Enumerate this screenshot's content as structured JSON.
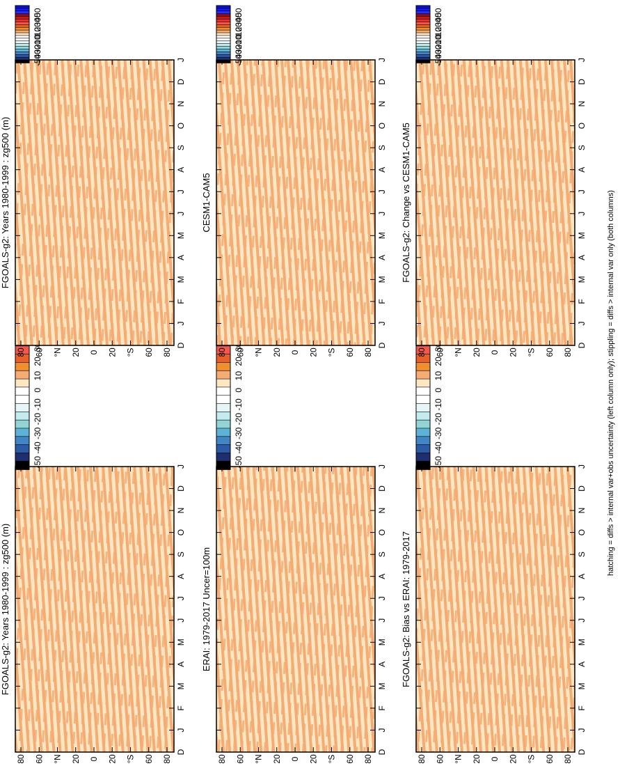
{
  "footnote": "hatching = diffs > internal var+obs uncertainty (left column only); stippling = diffs > internal var only (both columns)",
  "months": [
    "D",
    "J",
    "F",
    "M",
    "A",
    "M",
    "J",
    "J",
    "A",
    "S",
    "O",
    "N",
    "D",
    "J"
  ],
  "lat_ticks": [
    "80",
    "60",
    "°N",
    "20",
    "0",
    "20",
    "°S",
    "60",
    "80"
  ],
  "colorbar": {
    "labels": [
      "50",
      "40",
      "30",
      "20",
      "10",
      "0",
      "-10",
      "-20",
      "-30",
      "-40",
      "-50"
    ],
    "colors": [
      "#0d12d9",
      "#1518ef",
      "#2a2cf9",
      "#8b0d1c",
      "#c41a22",
      "#ee2a2a",
      "#f5574a",
      "#e7602a",
      "#f08f30",
      "#f5ac74",
      "#fde6c2",
      "#ffffff",
      "#ffffff",
      "#e6f6f8",
      "#c3ecef",
      "#93d4d6",
      "#5cb3d6",
      "#4185c4",
      "#2c5aa6",
      "#1e2e6e",
      "#000000"
    ]
  },
  "panels": [
    {
      "title": "FGOALS-g2: Years 1980-1999 : zg500 (m)"
    },
    {
      "title": "FGOALS-g2: Years 1980-1999 : zg500 (m)"
    },
    {
      "title": "ERAI: 1979-2017 Uncer=100m"
    },
    {
      "title": "CESM1-CAM5"
    },
    {
      "title": "FGOALS-g2: Bias vs ERAI: 1979-2017"
    },
    {
      "title": "FGOALS-g2: Change vs CESM1-CAM5"
    }
  ],
  "chart_data": [
    {
      "type": "heatmap",
      "title": "FGOALS-g2: Years 1980-1999 : zg500 (m)",
      "x_categories": [
        "D",
        "J",
        "F",
        "M",
        "A",
        "M",
        "J",
        "J",
        "A",
        "S",
        "O",
        "N",
        "D",
        "J"
      ],
      "y_ticks": [
        "80",
        "60",
        "°N",
        "20",
        "0",
        "20",
        "°S",
        "60",
        "80"
      ],
      "colorbar_labels": [
        "50",
        "40",
        "30",
        "20",
        "10",
        "0",
        "-10",
        "-20",
        "-30",
        "-40",
        "-50"
      ],
      "field_colors": [
        "#f5ac74",
        "#fde6c2"
      ]
    },
    {
      "type": "heatmap",
      "title": "FGOALS-g2: Years 1980-1999 : zg500 (m)",
      "x_categories": [
        "D",
        "J",
        "F",
        "M",
        "A",
        "M",
        "J",
        "J",
        "A",
        "S",
        "O",
        "N",
        "D",
        "J"
      ],
      "y_ticks": [
        "80",
        "60",
        "°N",
        "20",
        "0",
        "20",
        "°S",
        "60",
        "80"
      ],
      "colorbar_labels": [
        "50",
        "40",
        "30",
        "20",
        "10",
        "0",
        "-10",
        "-20",
        "-30",
        "-40",
        "-50"
      ],
      "field_colors": [
        "#f5ac74",
        "#fde6c2"
      ]
    },
    {
      "type": "heatmap",
      "title": "ERAI: 1979-2017 Uncer=100m",
      "x_categories": [
        "D",
        "J",
        "F",
        "M",
        "A",
        "M",
        "J",
        "J",
        "A",
        "S",
        "O",
        "N",
        "D",
        "J"
      ],
      "y_ticks": [
        "80",
        "60",
        "°N",
        "20",
        "0",
        "20",
        "°S",
        "60",
        "80"
      ],
      "colorbar_labels": [
        "50",
        "40",
        "30",
        "20",
        "10",
        "0",
        "-10",
        "-20",
        "-30",
        "-40",
        "-50"
      ],
      "field_colors": [
        "#f5ac74",
        "#fde6c2"
      ]
    },
    {
      "type": "heatmap",
      "title": "CESM1-CAM5",
      "x_categories": [
        "D",
        "J",
        "F",
        "M",
        "A",
        "M",
        "J",
        "J",
        "A",
        "S",
        "O",
        "N",
        "D",
        "J"
      ],
      "y_ticks": [
        "80",
        "60",
        "°N",
        "20",
        "0",
        "20",
        "°S",
        "60",
        "80"
      ],
      "colorbar_labels": [
        "50",
        "40",
        "30",
        "20",
        "10",
        "0",
        "-10",
        "-20",
        "-30",
        "-40",
        "-50"
      ],
      "field_colors": [
        "#f5ac74",
        "#fde6c2"
      ]
    },
    {
      "type": "heatmap",
      "title": "FGOALS-g2: Bias vs ERAI: 1979-2017",
      "x_categories": [
        "D",
        "J",
        "F",
        "M",
        "A",
        "M",
        "J",
        "J",
        "A",
        "S",
        "O",
        "N",
        "D",
        "J"
      ],
      "y_ticks": [
        "80",
        "60",
        "°N",
        "20",
        "0",
        "20",
        "°S",
        "60",
        "80"
      ],
      "colorbar_labels": [
        "50",
        "40",
        "30",
        "20",
        "10",
        "0",
        "-10",
        "-20",
        "-30",
        "-40",
        "-50"
      ],
      "field_colors": [
        "#f5ac74",
        "#fde6c2"
      ]
    },
    {
      "type": "heatmap",
      "title": "FGOALS-g2: Change vs CESM1-CAM5",
      "x_categories": [
        "D",
        "J",
        "F",
        "M",
        "A",
        "M",
        "J",
        "J",
        "A",
        "S",
        "O",
        "N",
        "D",
        "J"
      ],
      "y_ticks": [
        "80",
        "60",
        "°N",
        "20",
        "0",
        "20",
        "°S",
        "60",
        "80"
      ],
      "colorbar_labels": [
        "50",
        "40",
        "30",
        "20",
        "10",
        "0",
        "-10",
        "-20",
        "-30",
        "-40",
        "-50"
      ],
      "field_colors": [
        "#f5ac74",
        "#fde6c2"
      ]
    }
  ]
}
